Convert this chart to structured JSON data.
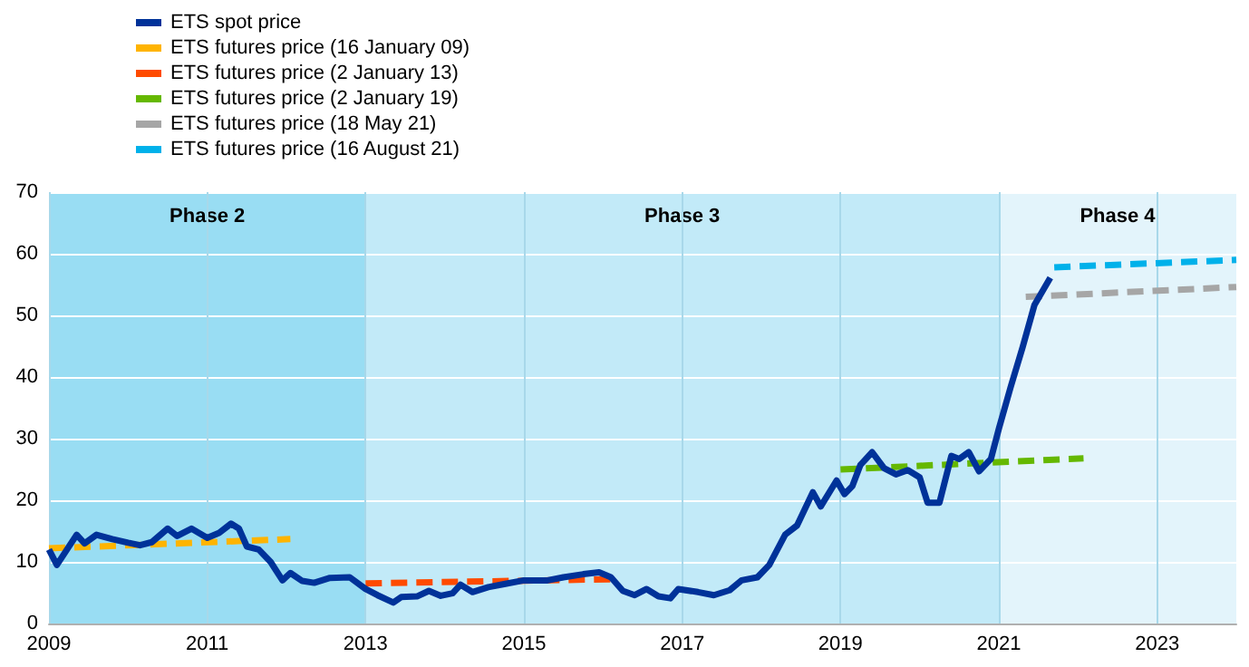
{
  "chart_data": {
    "type": "line",
    "xlim": [
      2009,
      2024
    ],
    "xticks": [
      2009,
      2011,
      2013,
      2015,
      2017,
      2019,
      2021,
      2023
    ],
    "ylim": [
      0,
      70
    ],
    "yticks": [
      0,
      10,
      20,
      30,
      40,
      50,
      60,
      70
    ],
    "grid": true,
    "legend": "top left",
    "marker": "none",
    "bands": [
      {
        "axis": "x",
        "from": 2009,
        "to": 2013,
        "label": "Phase 2",
        "color": "#99ddf3"
      },
      {
        "axis": "x",
        "from": 2013,
        "to": 2021,
        "label": "Phase 3",
        "color": "#c2eaf8"
      },
      {
        "axis": "x",
        "from": 2021,
        "to": 2024,
        "label": "Phase 4",
        "color": "#e3f4fb"
      }
    ],
    "series": [
      {
        "name": "ETS spot price",
        "color": "#003299",
        "line_style": "solid",
        "x": [
          2009.0,
          2009.1,
          2009.35,
          2009.45,
          2009.6,
          2009.8,
          2010.0,
          2010.15,
          2010.3,
          2010.5,
          2010.62,
          2010.8,
          2011.0,
          2011.15,
          2011.3,
          2011.4,
          2011.5,
          2011.65,
          2011.8,
          2011.95,
          2012.05,
          2012.2,
          2012.35,
          2012.55,
          2012.8,
          2013.0,
          2013.15,
          2013.35,
          2013.45,
          2013.65,
          2013.8,
          2013.95,
          2014.1,
          2014.2,
          2014.35,
          2014.55,
          2014.75,
          2015.0,
          2015.3,
          2015.5,
          2015.75,
          2015.95,
          2016.1,
          2016.25,
          2016.4,
          2016.55,
          2016.7,
          2016.85,
          2016.95,
          2017.2,
          2017.4,
          2017.6,
          2017.75,
          2017.95,
          2018.1,
          2018.3,
          2018.45,
          2018.65,
          2018.75,
          2018.95,
          2019.05,
          2019.15,
          2019.25,
          2019.4,
          2019.55,
          2019.7,
          2019.85,
          2020.0,
          2020.1,
          2020.25,
          2020.4,
          2020.5,
          2020.62,
          2020.75,
          2020.9,
          2021.0,
          2021.15,
          2021.3,
          2021.45,
          2021.65
        ],
        "values": [
          12,
          9.5,
          14.4,
          13,
          14.4,
          13.7,
          13.1,
          12.7,
          13.2,
          15.4,
          14.2,
          15.4,
          13.9,
          14.7,
          16.2,
          15.4,
          12.5,
          12,
          10,
          7,
          8.2,
          6.9,
          6.6,
          7.4,
          7.5,
          5.6,
          4.6,
          3.4,
          4.3,
          4.4,
          5.3,
          4.5,
          4.9,
          6.3,
          5.1,
          5.9,
          6.4,
          7,
          7,
          7.5,
          8,
          8.3,
          7.5,
          5.3,
          4.6,
          5.6,
          4.4,
          4.1,
          5.6,
          5.1,
          4.6,
          5.4,
          7,
          7.5,
          9.5,
          14.4,
          15.9,
          21.3,
          19,
          23.2,
          21,
          22.3,
          25.7,
          27.8,
          25.2,
          24.2,
          24.9,
          23.7,
          19.6,
          19.6,
          27.2,
          26.7,
          27.8,
          24.7,
          26.7,
          31.6,
          38.4,
          44.8,
          51.7,
          56.1
        ]
      },
      {
        "name": "ETS futures price (16 January 09)",
        "color": "#ffb400",
        "line_style": "dashed",
        "x": [
          2009,
          2012.05
        ],
        "values": [
          12.2,
          13.7
        ]
      },
      {
        "name": "ETS futures price (2 January 13)",
        "color": "#ff4b00",
        "line_style": "dashed",
        "x": [
          2013,
          2016.15
        ],
        "values": [
          6.5,
          7.2
        ]
      },
      {
        "name": "ETS futures price (2 January 19)",
        "color": "#65b800",
        "line_style": "dashed",
        "x": [
          2019,
          2022.07
        ],
        "values": [
          25,
          26.8
        ]
      },
      {
        "name": "ETS futures price (18 May 21)",
        "color": "#a6a6a6",
        "line_style": "dashed",
        "x": [
          2021.34,
          2024
        ],
        "values": [
          53,
          54.6
        ]
      },
      {
        "name": "ETS futures price (16 August 21)",
        "color": "#00b1ea",
        "line_style": "dashed",
        "x": [
          2021.7,
          2024
        ],
        "values": [
          57.8,
          59
        ]
      }
    ]
  }
}
